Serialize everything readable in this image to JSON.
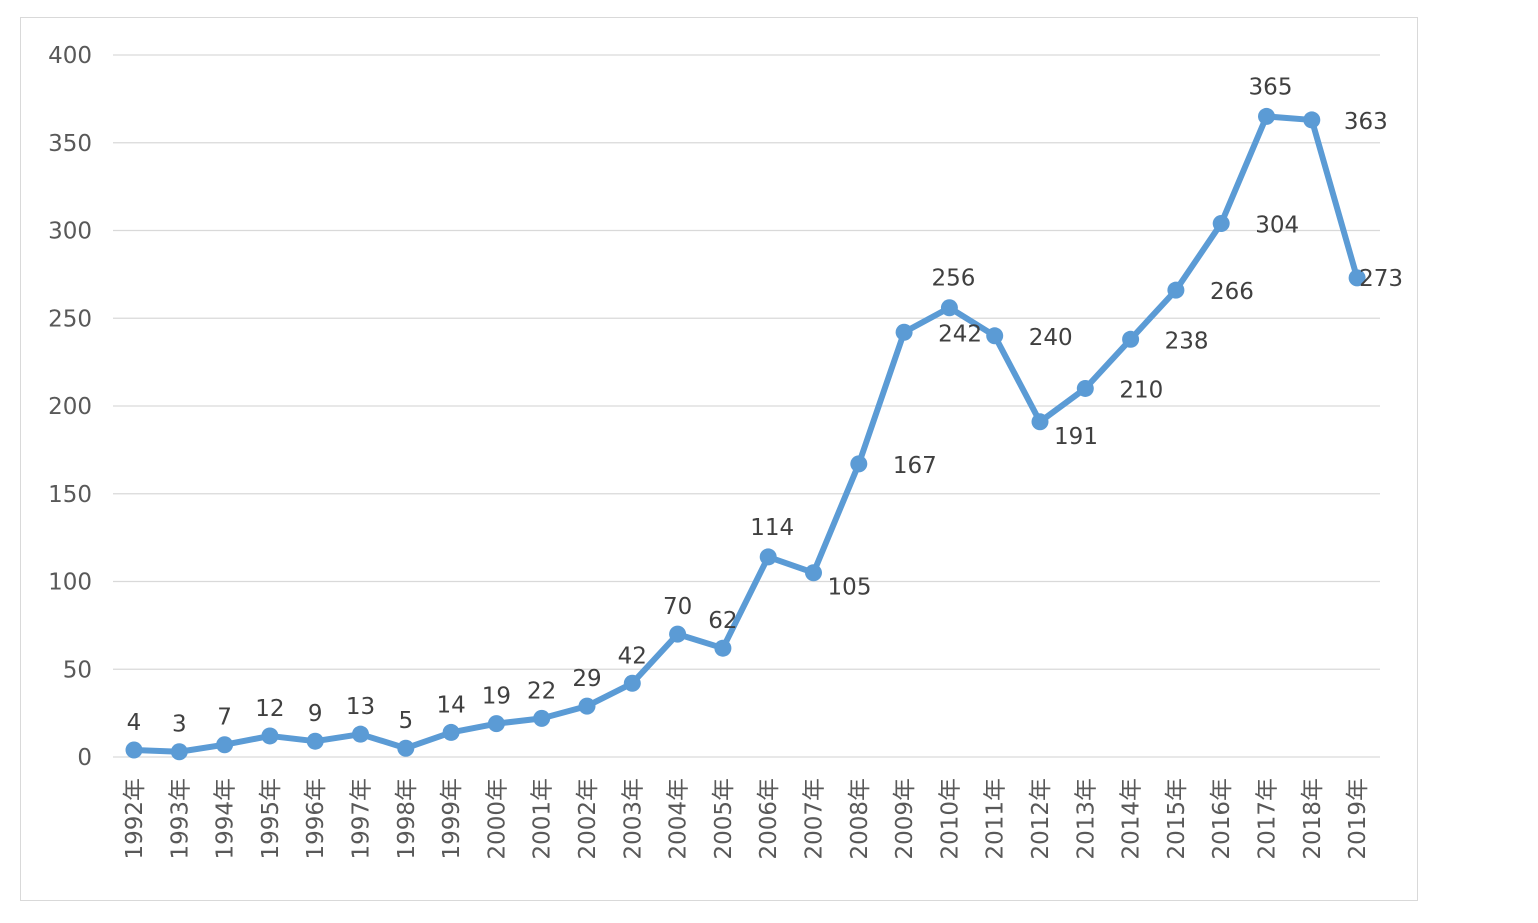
{
  "chart_data": {
    "type": "line",
    "title": "",
    "xlabel": "",
    "ylabel": "",
    "ylim": [
      0,
      400
    ],
    "yticks": [
      "0",
      "50",
      "100",
      "150",
      "200",
      "250",
      "300",
      "350",
      "400"
    ],
    "grid": true,
    "legend": "none",
    "color": "#5b9bd5",
    "categories": [
      "1992年",
      "1993年",
      "1994年",
      "1995年",
      "1996年",
      "1997年",
      "1998年",
      "1999年",
      "2000年",
      "2001年",
      "2002年",
      "2003年",
      "2004年",
      "2005年",
      "2006年",
      "2007年",
      "2008年",
      "2009年",
      "2010年",
      "2011年",
      "2012年",
      "2013年",
      "2014年",
      "2015年",
      "2016年",
      "2017年",
      "2018年",
      "2019年"
    ],
    "series": [
      {
        "values": [
          4,
          3,
          7,
          12,
          9,
          13,
          5,
          14,
          19,
          22,
          29,
          42,
          70,
          62,
          114,
          105,
          167,
          242,
          256,
          240,
          191,
          210,
          238,
          266,
          304,
          365,
          363,
          273
        ]
      }
    ]
  }
}
